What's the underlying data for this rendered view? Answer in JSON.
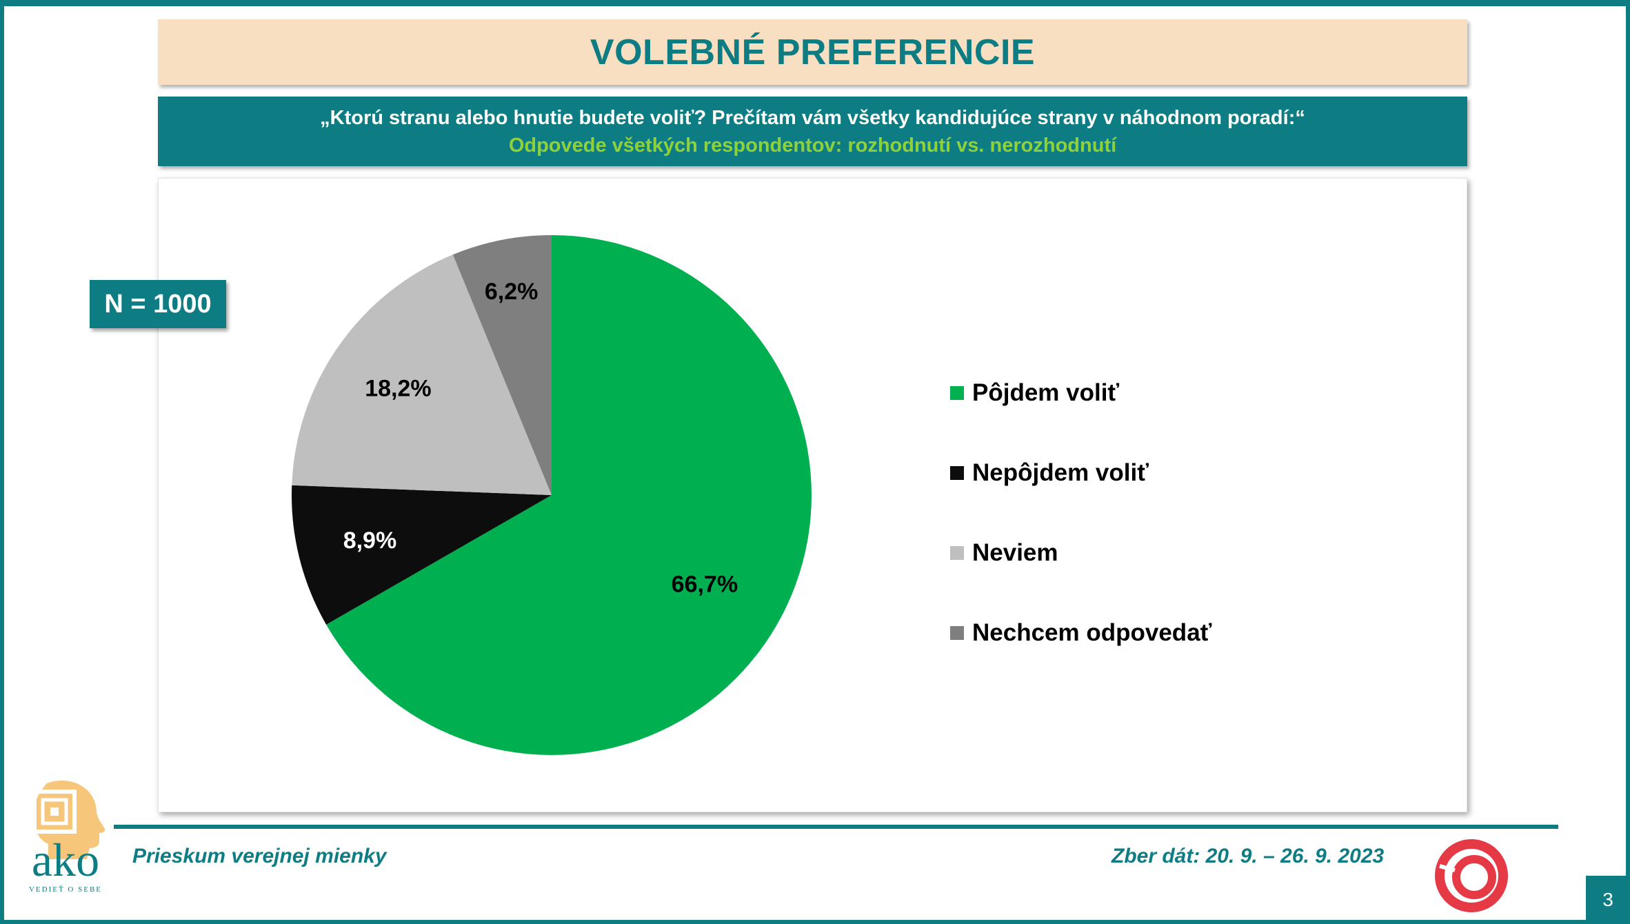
{
  "header": {
    "title": "VOLEBNÉ PREFERENCIE",
    "question": "„Ktorú stranu alebo hnutie budete voliť? Prečítam vám všetky kandidujúce strany v náhodnom poradí:“",
    "subtitle": "Odpovede všetkých respondentov: rozhodnutí vs. nerozhodnutí"
  },
  "sample": {
    "label": "N = 1000"
  },
  "chart_data": {
    "type": "pie",
    "categories": [
      "Pôjdem voliť",
      "Nepôjdem voliť",
      "Neviem",
      "Nechcem odpovedať"
    ],
    "values": [
      66.7,
      8.9,
      18.2,
      6.2
    ],
    "value_labels": [
      "66,7%",
      "8,9%",
      "18,2%",
      "6,2%"
    ],
    "colors": [
      "#00b050",
      "#0d0d0d",
      "#bfbfbf",
      "#7f7f7f"
    ],
    "label_colors": [
      "#000000",
      "#ffffff",
      "#000000",
      "#000000"
    ],
    "start_angle_deg": 0,
    "direction": "clockwise",
    "legend_position": "right"
  },
  "footer": {
    "survey": "Prieskum verejnej mienky",
    "dates": "Zber dát: 20. 9. – 26. 9. 2023",
    "page": "3"
  },
  "logo": {
    "word": "ako",
    "tagline": "VEDIEŤ O SEBE",
    "brand_icon": "red-spiral-logo-icon"
  },
  "theme": {
    "teal": "#0e7d83",
    "peach": "#f8dfc2",
    "green_text": "#8ed13a"
  }
}
